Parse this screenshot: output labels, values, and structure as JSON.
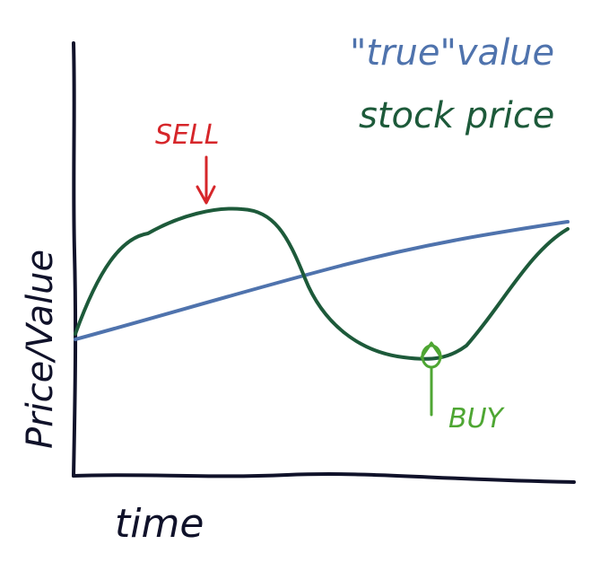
{
  "labels": {
    "true_value": "\"true\"value",
    "stock_price": "stock price",
    "sell": "SELL",
    "buy": "BUY",
    "x_axis": "time",
    "y_axis": "Price/Value"
  },
  "colors": {
    "axis": "#10122a",
    "true_value_line": "#4f73ad",
    "stock_price_line": "#1d5a3a",
    "sell": "#d6262a",
    "buy": "#4ea633",
    "background": "#ffffff"
  }
}
